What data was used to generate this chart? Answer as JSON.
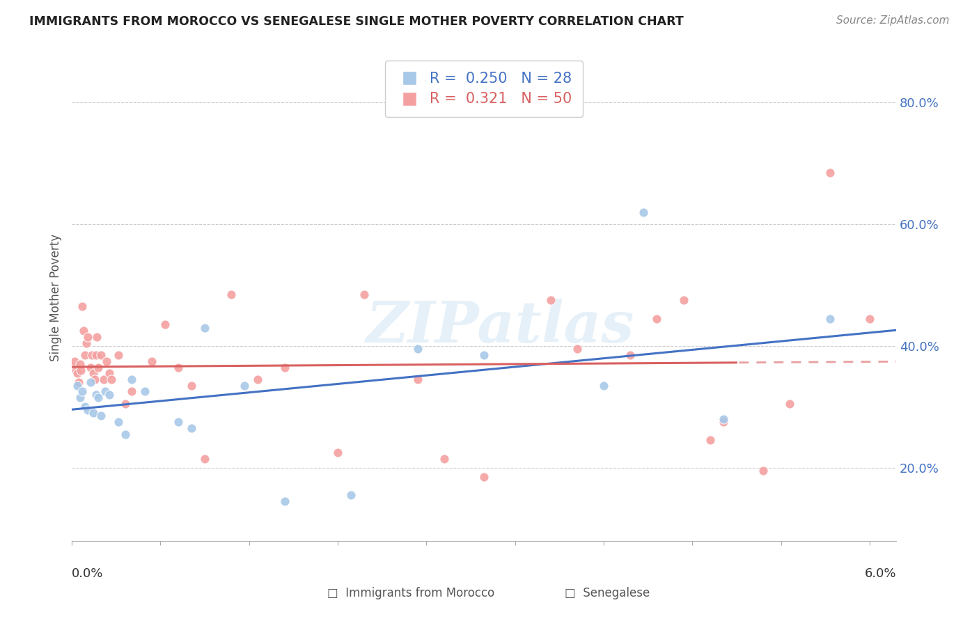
{
  "title": "IMMIGRANTS FROM MOROCCO VS SENEGALESE SINGLE MOTHER POVERTY CORRELATION CHART",
  "source": "Source: ZipAtlas.com",
  "ylabel": "Single Mother Poverty",
  "xlim": [
    0.0,
    0.062
  ],
  "ylim": [
    0.08,
    0.88
  ],
  "yticks": [
    0.2,
    0.4,
    0.6,
    0.8
  ],
  "ytick_labels": [
    "20.0%",
    "40.0%",
    "60.0%",
    "80.0%"
  ],
  "legend1_R": "0.250",
  "legend1_N": "28",
  "legend2_R": "0.321",
  "legend2_N": "50",
  "blue_color": "#a8c8e8",
  "pink_color": "#f4a0a0",
  "line_blue": "#4472c4",
  "line_pink": "#d96060",
  "watermark": "ZIPatlas",
  "morocco_x": [
    0.0004,
    0.0006,
    0.0008,
    0.001,
    0.0012,
    0.0014,
    0.0016,
    0.0018,
    0.002,
    0.0022,
    0.0025,
    0.0028,
    0.0035,
    0.004,
    0.0045,
    0.0055,
    0.008,
    0.009,
    0.01,
    0.013,
    0.016,
    0.021,
    0.026,
    0.031,
    0.04,
    0.043,
    0.049,
    0.057
  ],
  "morocco_y": [
    0.335,
    0.315,
    0.325,
    0.3,
    0.295,
    0.34,
    0.29,
    0.32,
    0.315,
    0.285,
    0.325,
    0.32,
    0.275,
    0.255,
    0.345,
    0.325,
    0.275,
    0.265,
    0.43,
    0.335,
    0.145,
    0.155,
    0.395,
    0.385,
    0.335,
    0.62,
    0.28,
    0.445
  ],
  "senegal_x": [
    0.0002,
    0.0003,
    0.0004,
    0.0005,
    0.0006,
    0.0007,
    0.0008,
    0.0009,
    0.001,
    0.0011,
    0.0012,
    0.0014,
    0.0015,
    0.0016,
    0.0017,
    0.0018,
    0.0019,
    0.002,
    0.0022,
    0.0024,
    0.0026,
    0.0028,
    0.003,
    0.0035,
    0.004,
    0.0045,
    0.006,
    0.007,
    0.008,
    0.009,
    0.01,
    0.012,
    0.014,
    0.016,
    0.02,
    0.022,
    0.026,
    0.028,
    0.031,
    0.036,
    0.038,
    0.042,
    0.044,
    0.046,
    0.048,
    0.049,
    0.052,
    0.054,
    0.057,
    0.06
  ],
  "senegal_y": [
    0.375,
    0.36,
    0.355,
    0.34,
    0.37,
    0.36,
    0.465,
    0.425,
    0.385,
    0.405,
    0.415,
    0.365,
    0.385,
    0.355,
    0.345,
    0.385,
    0.415,
    0.365,
    0.385,
    0.345,
    0.375,
    0.355,
    0.345,
    0.385,
    0.305,
    0.325,
    0.375,
    0.435,
    0.365,
    0.335,
    0.215,
    0.485,
    0.345,
    0.365,
    0.225,
    0.485,
    0.345,
    0.215,
    0.185,
    0.475,
    0.395,
    0.385,
    0.445,
    0.475,
    0.245,
    0.275,
    0.195,
    0.305,
    0.685,
    0.445
  ]
}
